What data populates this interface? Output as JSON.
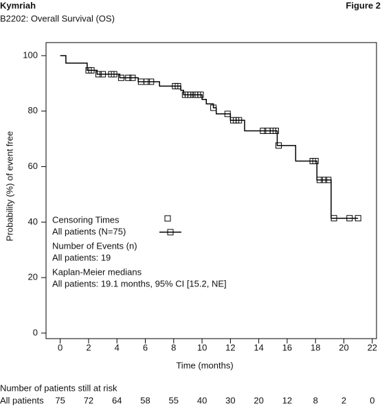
{
  "header": {
    "product": "Kymriah",
    "figure": "Figure 2",
    "subtitle": "B2202: Overall Survival (OS)"
  },
  "chart_data": {
    "type": "km",
    "xlabel": "Time (months)",
    "ylabel": "Probability (%) of event free",
    "xlim": [
      -1,
      22.3
    ],
    "ylim": [
      -2,
      104.7
    ],
    "xticks": [
      0,
      2,
      4,
      6,
      8,
      10,
      12,
      14,
      16,
      18,
      20,
      22
    ],
    "yticks": [
      0,
      20,
      40,
      60,
      80,
      100
    ],
    "series": [
      {
        "name": "All patients (N=75)",
        "color": "#000000",
        "x": [
          0,
          0.4,
          1.9,
          2.6,
          4.2,
          5.5,
          7.0,
          8.5,
          8.7,
          10.0,
          10.3,
          10.8,
          11.0,
          12.0,
          13.0,
          15.3,
          16.6,
          18.1,
          19.1,
          21.0
        ],
        "values": [
          100,
          97.3,
          94.7,
          93.3,
          92,
          90.6,
          89,
          87.5,
          85.9,
          84.2,
          82.6,
          81.2,
          79,
          76.7,
          72.9,
          67.6,
          62,
          55.2,
          41.4,
          41.4
        ]
      }
    ],
    "censoring": {
      "name": "Censoring Times",
      "x": [
        2.0,
        2.2,
        2.7,
        3.0,
        3.6,
        3.8,
        4.3,
        4.8,
        5.1,
        5.7,
        6.1,
        6.4,
        8.1,
        8.3,
        8.8,
        9.0,
        9.2,
        9.5,
        9.7,
        9.9,
        10.8,
        11.8,
        12.2,
        12.4,
        12.6,
        14.3,
        14.6,
        15.0,
        15.2,
        15.4,
        17.8,
        18.0,
        18.3,
        18.6,
        18.9,
        19.3,
        20.4,
        21.0
      ],
      "values": [
        94.7,
        94.7,
        93.3,
        93.3,
        93.3,
        93.3,
        92,
        92,
        92,
        90.6,
        90.6,
        90.6,
        89,
        89,
        85.9,
        85.9,
        85.9,
        85.9,
        85.9,
        85.9,
        81.2,
        79,
        76.7,
        76.7,
        76.7,
        72.9,
        72.9,
        72.9,
        72.9,
        67.6,
        62,
        62,
        55.2,
        55.2,
        55.2,
        41.4,
        41.4,
        41.4
      ]
    },
    "annotations": [
      "Number of Events (n)",
      "All patients: 19",
      "Kaplan-Meier medians",
      "All patients: 19.1 months, 95% CI [15.2, NE]"
    ]
  },
  "risk_table": {
    "title": "Number of patients still at risk",
    "row_label": "All patients",
    "counts": [
      75,
      72,
      64,
      58,
      55,
      40,
      30,
      20,
      12,
      8,
      2,
      0
    ]
  }
}
